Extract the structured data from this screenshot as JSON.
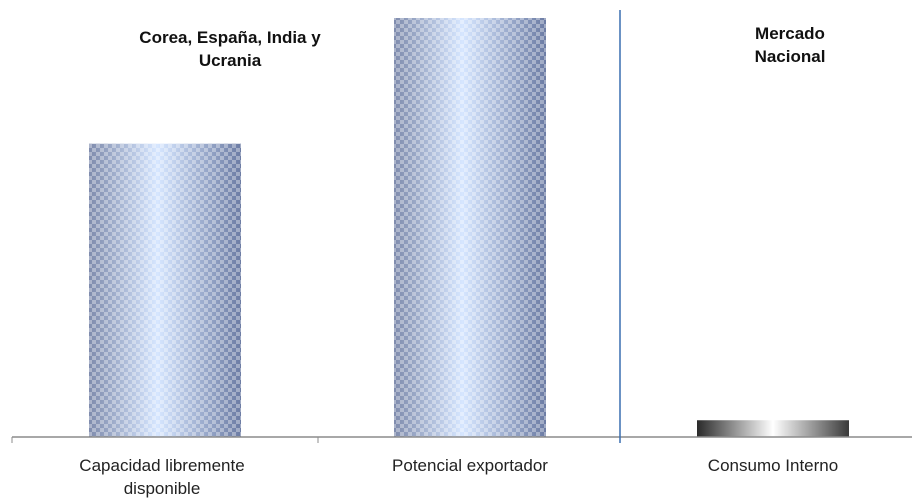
{
  "chart_data": {
    "type": "bar",
    "categories": [
      "Capacidad libremente disponible",
      "Potencial exportador",
      "Consumo Interno"
    ],
    "values": [
      70,
      100,
      4
    ],
    "ylim": [
      0,
      100
    ],
    "grid": false,
    "title": "",
    "xlabel": "",
    "ylabel": "",
    "groups": [
      {
        "label": "Corea, España, India y Ucrania",
        "categories": [
          "Capacidad libremente disponible",
          "Potencial exportador"
        ]
      },
      {
        "label": "Mercado Nacional",
        "categories": [
          "Consumo Interno"
        ]
      }
    ],
    "colors": {
      "bar_light": "#c8dcff",
      "bar_dark": "#6f7fa6",
      "consumo_light": "#ffffff",
      "consumo_dark": "#2a2a2a",
      "divider": "#3a6fb0",
      "axis": "#8c8c8c"
    }
  },
  "labels": {
    "group_left": "Corea, España, India y\nUcrania",
    "group_right": "Mercado\nNacional",
    "cat_0": "Capacidad libremente\ndisponible",
    "cat_1": "Potencial exportador",
    "cat_2": "Consumo Interno"
  }
}
